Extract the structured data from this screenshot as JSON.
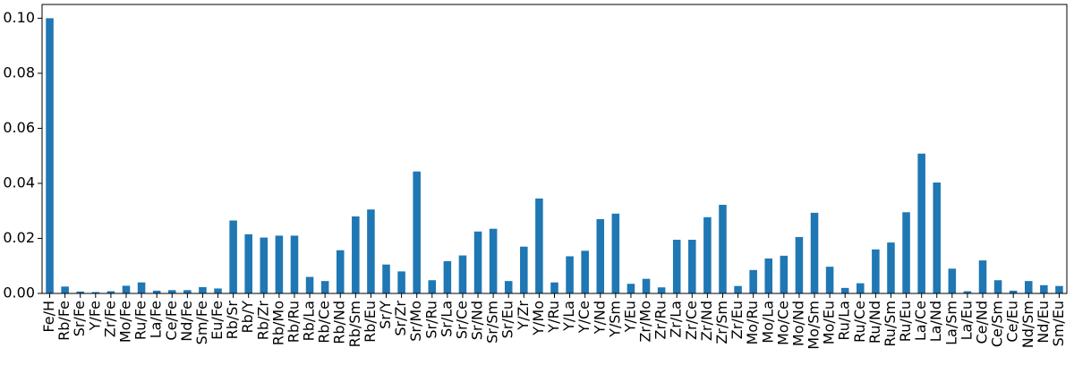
{
  "chart_data": {
    "type": "bar",
    "categories": [
      "Fe/H",
      "Rb/Fe",
      "Sr/Fe",
      "Y/Fe",
      "Zr/Fe",
      "Mo/Fe",
      "Ru/Fe",
      "La/Fe",
      "Ce/Fe",
      "Nd/Fe",
      "Sm/Fe",
      "Eu/Fe",
      "Rb/Sr",
      "Rb/Y",
      "Rb/Zr",
      "Rb/Mo",
      "Rb/Ru",
      "Rb/La",
      "Rb/Ce",
      "Rb/Nd",
      "Rb/Sm",
      "Rb/Eu",
      "Sr/Y",
      "Sr/Zr",
      "Sr/Mo",
      "Sr/Ru",
      "Sr/La",
      "Sr/Ce",
      "Sr/Nd",
      "Sr/Sm",
      "Sr/Eu",
      "Y/Zr",
      "Y/Mo",
      "Y/Ru",
      "Y/La",
      "Y/Ce",
      "Y/Nd",
      "Y/Sm",
      "Y/Eu",
      "Zr/Mo",
      "Zr/Ru",
      "Zr/La",
      "Zr/Ce",
      "Zr/Nd",
      "Zr/Sm",
      "Zr/Eu",
      "Mo/Ru",
      "Mo/La",
      "Mo/Ce",
      "Mo/Nd",
      "Mo/Sm",
      "Mo/Eu",
      "Ru/La",
      "Ru/Ce",
      "Ru/Nd",
      "Ru/Sm",
      "Ru/Eu",
      "La/Ce",
      "La/Nd",
      "La/Sm",
      "La/Eu",
      "Ce/Nd",
      "Ce/Sm",
      "Ce/Eu",
      "Nd/Sm",
      "Nd/Eu",
      "Sm/Eu"
    ],
    "values": [
      0.1,
      0.0025,
      0.0007,
      0.0005,
      0.0008,
      0.0028,
      0.004,
      0.001,
      0.0012,
      0.0012,
      0.0023,
      0.0018,
      0.0265,
      0.0215,
      0.0203,
      0.021,
      0.021,
      0.006,
      0.0045,
      0.0157,
      0.028,
      0.0305,
      0.0105,
      0.008,
      0.0443,
      0.0048,
      0.0117,
      0.0138,
      0.0225,
      0.0235,
      0.0045,
      0.017,
      0.0345,
      0.004,
      0.0135,
      0.0155,
      0.027,
      0.029,
      0.0035,
      0.0053,
      0.0022,
      0.0195,
      0.0195,
      0.0277,
      0.0322,
      0.0027,
      0.0085,
      0.0127,
      0.0137,
      0.0205,
      0.0293,
      0.0097,
      0.002,
      0.0037,
      0.016,
      0.0185,
      0.0295,
      0.0508,
      0.0403,
      0.009,
      0.0008,
      0.012,
      0.0048,
      0.001,
      0.0045,
      0.003,
      0.0027
    ],
    "color": "#1f77b4",
    "ylim": [
      0,
      0.105
    ],
    "yticks": [
      {
        "value": 0,
        "label": "0.00"
      },
      {
        "value": 0.02,
        "label": "0.02"
      },
      {
        "value": 0.04,
        "label": "0.04"
      },
      {
        "value": 0.06,
        "label": "0.06"
      },
      {
        "value": 0.08,
        "label": "0.08"
      },
      {
        "value": 0.1,
        "label": "0.10"
      }
    ]
  }
}
